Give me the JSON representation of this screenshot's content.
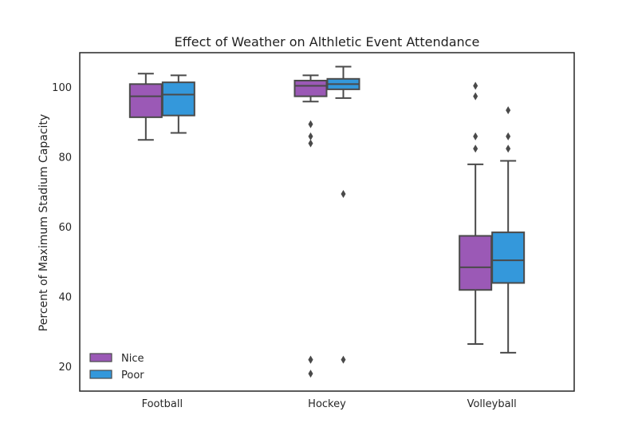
{
  "chart_data": {
    "type": "box",
    "title": "Effect of Weather on Althletic Event Attendance",
    "xlabel": "",
    "ylabel": "Percent of Maximum Stadium Capacity",
    "ylim": [
      13,
      110
    ],
    "yticks": [
      20,
      40,
      60,
      80,
      100
    ],
    "categories": [
      "Football",
      "Hockey",
      "Volleyball"
    ],
    "grid": false,
    "legend_position": "bottom-left",
    "series": [
      {
        "name": "Nice",
        "color": "#9b59b6",
        "boxes": [
          {
            "category": "Football",
            "whisker_low": 85,
            "q1": 91.5,
            "median": 97.5,
            "q3": 101,
            "whisker_high": 104,
            "outliers": []
          },
          {
            "category": "Hockey",
            "whisker_low": 96,
            "q1": 97.5,
            "median": 100.5,
            "q3": 102,
            "whisker_high": 103.5,
            "outliers": [
              89.5,
              86,
              84,
              22,
              22,
              18
            ]
          },
          {
            "category": "Volleyball",
            "whisker_low": 26.5,
            "q1": 42,
            "median": 48.5,
            "q3": 57.5,
            "whisker_high": 78,
            "outliers": [
              82.5,
              86,
              97.5,
              100.5
            ]
          }
        ]
      },
      {
        "name": "Poor",
        "color": "#3498db",
        "boxes": [
          {
            "category": "Football",
            "whisker_low": 87,
            "q1": 92,
            "median": 98,
            "q3": 101.5,
            "whisker_high": 103.5,
            "outliers": []
          },
          {
            "category": "Hockey",
            "whisker_low": 97,
            "q1": 99.5,
            "median": 101,
            "q3": 102.5,
            "whisker_high": 106,
            "outliers": [
              69.5,
              22
            ]
          },
          {
            "category": "Volleyball",
            "whisker_low": 24,
            "q1": 44,
            "median": 50.5,
            "q3": 58.5,
            "whisker_high": 79,
            "outliers": [
              82.5,
              86,
              93.5
            ]
          }
        ]
      }
    ]
  }
}
